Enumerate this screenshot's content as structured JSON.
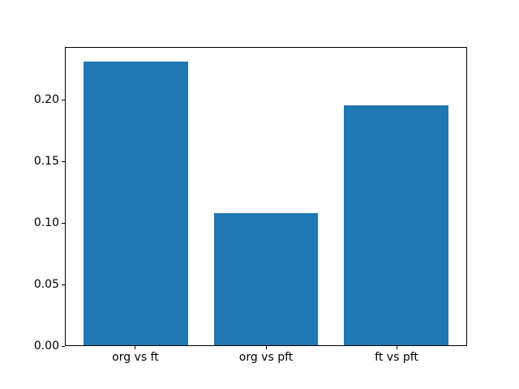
{
  "chart_data": {
    "type": "bar",
    "categories": [
      "org vs ft",
      "org vs pft",
      "ft vs pft"
    ],
    "values": [
      0.232,
      0.108,
      0.196
    ],
    "title": "",
    "xlabel": "",
    "ylabel": "",
    "ylim": [
      0,
      0.243
    ],
    "xlim": [
      -0.54,
      2.54
    ],
    "bar_width": 0.8,
    "yticks": {
      "values": [
        0,
        0.05,
        0.1,
        0.15,
        0.2
      ],
      "labels": [
        "0.00",
        "0.05",
        "0.10",
        "0.15",
        "0.20"
      ]
    },
    "bar_color": "#1f77b4",
    "axis_color": "#000000",
    "background_color": "#ffffff",
    "grid": false,
    "legend": null
  }
}
